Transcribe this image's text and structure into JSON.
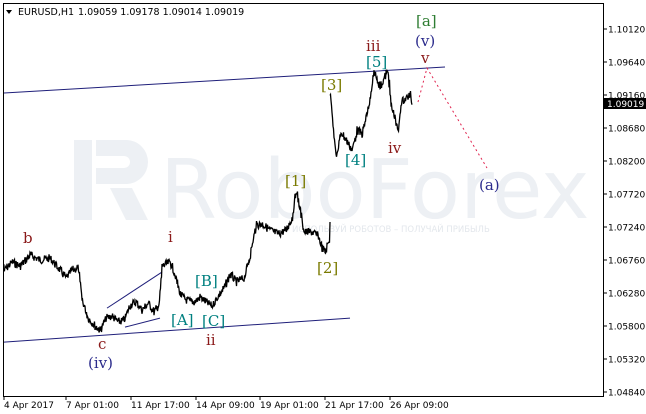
{
  "header": {
    "symbol": "EURUSD,H1",
    "ohlc": "1.09059 1.09178 1.09014 1.09019"
  },
  "watermark": {
    "brand": "RoboForex",
    "slogan": "ИСПОЛЬЗУЙ РОБОТОВ – ПОЛУЧАЙ ПРИБЫЛЬ"
  },
  "colors": {
    "price": "#000000",
    "trendline": "#1f1f7a",
    "forecast": "#e0244f",
    "current_price_bg": "#000000",
    "roman": "#8b1a1a",
    "paren": "#2b2b8c",
    "bracket": "#7a7a00"
  },
  "chart_data": {
    "type": "line",
    "symbol": "EURUSD",
    "timeframe": "H1",
    "current_price": "1.09019",
    "x_axis": {
      "unit": "H1 bars",
      "ticks": [
        {
          "bar": 0,
          "label": "4 Apr 2017"
        },
        {
          "bar": 62,
          "label": "7 Apr 01:00"
        },
        {
          "bar": 127,
          "label": "11 Apr 17:00"
        },
        {
          "bar": 192,
          "label": "14 Apr 09:00"
        },
        {
          "bar": 256,
          "label": "19 Apr 01:00"
        },
        {
          "bar": 321,
          "label": "21 Apr 17:00"
        },
        {
          "bar": 386,
          "label": "26 Apr 09:00"
        }
      ]
    },
    "y_axis": {
      "ylim": [
        1.0477,
        1.1047
      ],
      "ticks": [
        "1.10120",
        "1.09640",
        "1.09160",
        "1.08680",
        "1.08200",
        "1.07720",
        "1.07240",
        "1.06760",
        "1.06280",
        "1.05800",
        "1.05320",
        "1.04840"
      ]
    },
    "price_segments": [
      [
        [
          0,
          1.06614
        ],
        [
          8,
          1.0673
        ],
        [
          16,
          1.06672
        ],
        [
          26,
          1.06832
        ],
        [
          36,
          1.06759
        ],
        [
          46,
          1.06788
        ],
        [
          54,
          1.06643
        ],
        [
          62,
          1.06497
        ],
        [
          68,
          1.06614
        ],
        [
          74,
          1.06643
        ],
        [
          78,
          1.06177
        ],
        [
          84,
          1.05915
        ],
        [
          91,
          1.05799
        ],
        [
          96,
          1.0574
        ],
        [
          102,
          1.05915
        ],
        [
          108,
          1.05944
        ],
        [
          114,
          1.05857
        ],
        [
          120,
          1.05886
        ],
        [
          126,
          1.06104
        ],
        [
          132,
          1.06148
        ],
        [
          138,
          1.06031
        ],
        [
          144,
          1.06133
        ],
        [
          150,
          1.06002
        ],
        [
          155,
          1.06119
        ],
        [
          158,
          1.06672
        ],
        [
          166,
          1.0673
        ],
        [
          170,
          1.06584
        ],
        [
          176,
          1.06264
        ],
        [
          182,
          1.06177
        ],
        [
          190,
          1.06148
        ],
        [
          196,
          1.06221
        ],
        [
          202,
          1.06148
        ],
        [
          208,
          1.0609
        ],
        [
          214,
          1.06235
        ],
        [
          220,
          1.06352
        ],
        [
          226,
          1.06555
        ],
        [
          232,
          1.06439
        ],
        [
          240,
          1.06497
        ],
        [
          246,
          1.06832
        ],
        [
          252,
          1.07268
        ],
        [
          258,
          1.07283
        ],
        [
          266,
          1.07196
        ],
        [
          274,
          1.07137
        ],
        [
          282,
          1.07196
        ],
        [
          288,
          1.0737
        ],
        [
          292,
          1.07777
        ],
        [
          296,
          1.07486
        ],
        [
          300,
          1.07166
        ],
        [
          308,
          1.07166
        ],
        [
          314,
          1.07108
        ],
        [
          318,
          1.06934
        ],
        [
          321,
          1.06875
        ],
        [
          325,
          1.0705
        ],
        [
          326,
          1.07312
        ]
      ],
      [
        [
          326,
          1.09189
        ],
        [
          329,
          1.08723
        ],
        [
          332,
          1.08243
        ],
        [
          337,
          1.08621
        ],
        [
          342,
          1.08505
        ],
        [
          348,
          1.08359
        ],
        [
          353,
          1.0865
        ],
        [
          358,
          1.08592
        ],
        [
          363,
          1.08898
        ],
        [
          366,
          1.09087
        ],
        [
          370,
          1.09494
        ],
        [
          376,
          1.09276
        ],
        [
          382,
          1.09465
        ],
        [
          384,
          1.09494
        ],
        [
          387,
          1.08985
        ],
        [
          391,
          1.08825
        ],
        [
          394,
          1.08607
        ],
        [
          397,
          1.09058
        ],
        [
          402,
          1.09116
        ],
        [
          406,
          1.0916
        ],
        [
          408,
          1.09019
        ]
      ]
    ],
    "trendlines": [
      {
        "name": "upper-channel",
        "from": [
          0,
          1.09189
        ],
        "to": [
          441,
          1.09567
        ]
      },
      {
        "name": "lower-channel",
        "from": [
          0,
          1.05566
        ],
        "to": [
          346,
          1.05915
        ]
      },
      {
        "name": "triangle-upper",
        "from": [
          103,
          1.0606
        ],
        "to": [
          158,
          1.06584
        ]
      },
      {
        "name": "triangle-lower",
        "from": [
          121,
          1.05784
        ],
        "to": [
          156,
          1.05915
        ]
      }
    ],
    "forecast": [
      [
        414,
        1.09058
      ],
      [
        423,
        1.09553
      ],
      [
        483,
        1.08098
      ]
    ],
    "wave_labels": [
      "b",
      "i",
      "c",
      "(iv)",
      "[A]",
      "[B]",
      "[C]",
      "ii",
      "[1]",
      "[2]",
      "[3]",
      "[4]",
      "[5]",
      "iii",
      "iv",
      "v",
      "(v)",
      "[a]",
      "(a)"
    ]
  }
}
